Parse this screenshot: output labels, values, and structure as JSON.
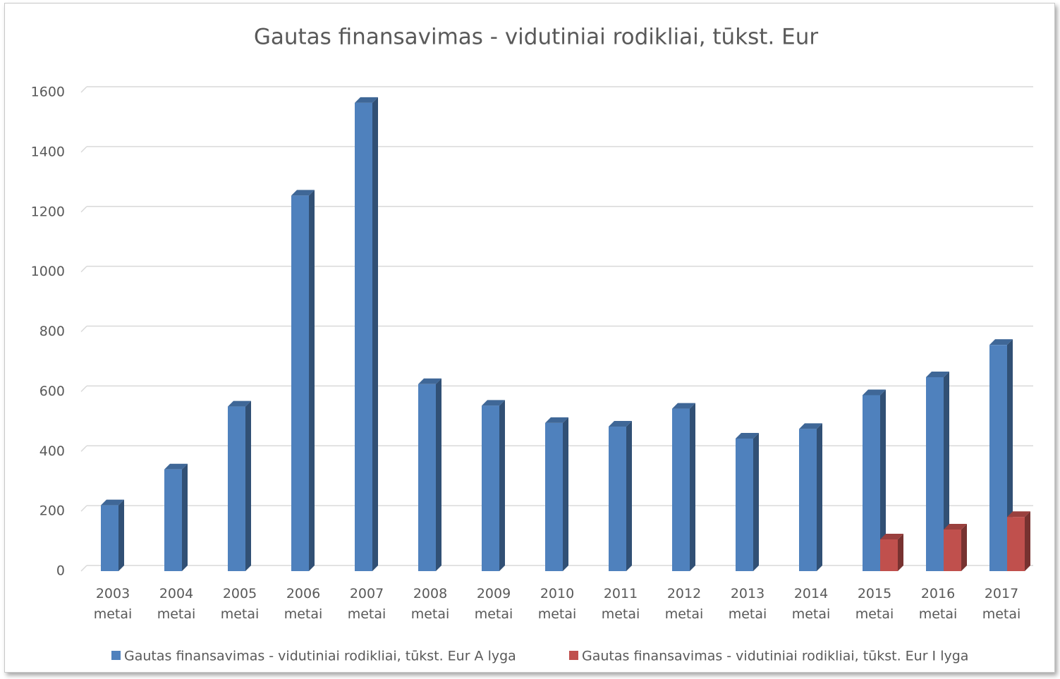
{
  "chart_data": {
    "type": "bar3d",
    "title": "Gautas finansavimas - vidutiniai rodikliai, tūkst. Eur",
    "categories": [
      "2003 metai",
      "2004 metai",
      "2005 metai",
      "2006 metai",
      "2007 metai",
      "2008 metai",
      "2009 metai",
      "2010 metai",
      "2011 metai",
      "2012 metai",
      "2013 metai",
      "2014 metai",
      "2015 metai",
      "2016 metai",
      "2017 metai"
    ],
    "series": [
      {
        "name": "Gautas finansavimas - vidutiniai rodikliai, tūkst. Eur A lyga",
        "color": "#4f81bd",
        "values": [
          220,
          340,
          550,
          1255,
          1565,
          625,
          553,
          495,
          483,
          543,
          443,
          475,
          588,
          648,
          756
        ]
      },
      {
        "name": "Gautas finansavimas - vidutiniai rodikliai, tūkst. Eur I lyga",
        "color": "#c0504d",
        "values": [
          null,
          null,
          null,
          null,
          null,
          null,
          null,
          null,
          null,
          null,
          null,
          null,
          106,
          139,
          181
        ]
      }
    ],
    "ylim": [
      0,
      1600
    ],
    "yticks": [
      0,
      200,
      400,
      600,
      800,
      1000,
      1200,
      1400,
      1600
    ],
    "grid": true,
    "legend": "bottom"
  }
}
